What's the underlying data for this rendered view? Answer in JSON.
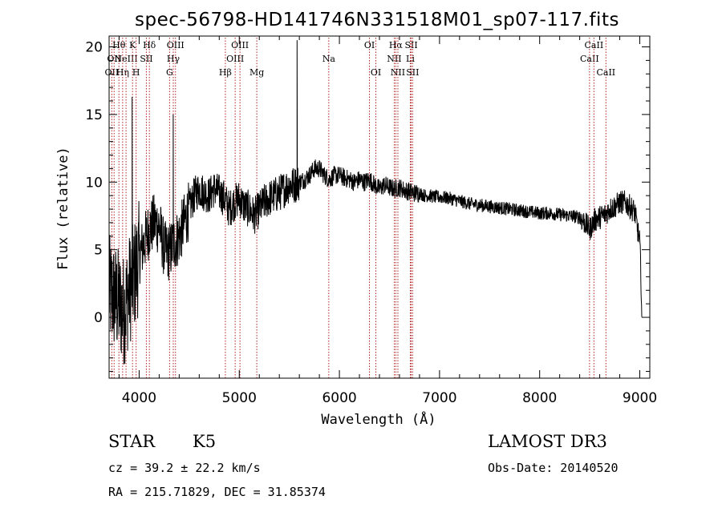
{
  "chart_data": {
    "type": "line",
    "title": "spec-56798-HD141746N331518M01_sp07-117.fits",
    "xlabel": "Wavelength (Å)",
    "ylabel": "Flux (relative)",
    "xlim": [
      3700,
      9100
    ],
    "ylim": [
      -4.5,
      20.8
    ],
    "xticks": [
      4000,
      5000,
      6000,
      7000,
      8000,
      9000
    ],
    "yticks": [
      0,
      5,
      10,
      15,
      20
    ],
    "series": [
      {
        "name": "flux",
        "x": [
          3700,
          3750,
          3800,
          3850,
          3900,
          3950,
          4000,
          4050,
          4100,
          4150,
          4200,
          4250,
          4300,
          4350,
          4400,
          4450,
          4500,
          4550,
          4600,
          4650,
          4700,
          4750,
          4800,
          4850,
          4900,
          4950,
          5000,
          5050,
          5100,
          5150,
          5200,
          5250,
          5300,
          5350,
          5400,
          5450,
          5500,
          5550,
          5600,
          5650,
          5700,
          5750,
          5800,
          5850,
          5900,
          5950,
          6000,
          6050,
          6100,
          6150,
          6200,
          6250,
          6300,
          6350,
          6400,
          6450,
          6500,
          6550,
          6600,
          6650,
          6700,
          6750,
          6800,
          6850,
          6900,
          6950,
          7000,
          7100,
          7200,
          7300,
          7400,
          7500,
          7600,
          7700,
          7800,
          7900,
          8000,
          8100,
          8200,
          8300,
          8400,
          8450,
          8500,
          8550,
          8600,
          8650,
          8700,
          8750,
          8800,
          8850,
          8900,
          8950,
          9000,
          9010,
          9020
        ],
        "values": [
          2.0,
          1.5,
          1.0,
          0.5,
          2.0,
          3.0,
          4.5,
          5.5,
          6.5,
          7.0,
          6.8,
          5.0,
          4.8,
          5.5,
          6.0,
          7.0,
          8.0,
          9.0,
          9.5,
          9.2,
          9.0,
          9.5,
          9.2,
          8.8,
          8.0,
          8.5,
          8.8,
          8.2,
          8.0,
          7.5,
          8.0,
          8.5,
          8.8,
          9.0,
          9.2,
          9.5,
          9.8,
          9.8,
          10.0,
          10.2,
          10.5,
          11.0,
          11.0,
          10.5,
          10.2,
          10.5,
          10.5,
          10.3,
          10.2,
          10.0,
          10.2,
          10.0,
          10.2,
          9.8,
          9.5,
          9.8,
          9.6,
          9.5,
          9.6,
          9.4,
          9.3,
          9.2,
          9.2,
          9.0,
          9.0,
          8.9,
          8.9,
          8.8,
          8.6,
          8.4,
          8.3,
          8.2,
          8.1,
          8.0,
          7.9,
          7.8,
          7.7,
          7.7,
          7.6,
          7.5,
          7.4,
          7.0,
          6.5,
          7.2,
          7.4,
          7.6,
          8.0,
          8.2,
          8.5,
          8.5,
          8.2,
          7.8,
          5.5,
          3.5,
          0.0
        ]
      }
    ],
    "spikes": [
      {
        "x": 5577,
        "value": 20.5
      },
      {
        "x": 4340,
        "value": 15.0
      },
      {
        "x": 3930,
        "value": 16.3
      }
    ],
    "line_markers": [
      {
        "x": 3727,
        "row": 2,
        "label": "OII"
      },
      {
        "x": 3750,
        "row": 1,
        "label": "OII"
      },
      {
        "x": 3798,
        "row": 0,
        "label": "Hθ"
      },
      {
        "x": 3835,
        "row": 2,
        "label": "Hη"
      },
      {
        "x": 3869,
        "row": 1,
        "label": "NeIII"
      },
      {
        "x": 3934,
        "row": 0,
        "label": "K"
      },
      {
        "x": 3970,
        "row": 2,
        "label": "H"
      },
      {
        "x": 4072,
        "row": 1,
        "label": "SII"
      },
      {
        "x": 4102,
        "row": 0,
        "label": "Hδ"
      },
      {
        "x": 4304,
        "row": 2,
        "label": "G"
      },
      {
        "x": 4341,
        "row": 1,
        "label": "Hγ"
      },
      {
        "x": 4363,
        "row": 0,
        "label": "OIII"
      },
      {
        "x": 4861,
        "row": 2,
        "label": "Hβ"
      },
      {
        "x": 4959,
        "row": 1,
        "label": "OIII"
      },
      {
        "x": 5007,
        "row": 0,
        "label": "OIII"
      },
      {
        "x": 5175,
        "row": 2,
        "label": "Mg"
      },
      {
        "x": 5894,
        "row": 1,
        "label": "Na"
      },
      {
        "x": 6300,
        "row": 0,
        "label": "OI"
      },
      {
        "x": 6364,
        "row": 2,
        "label": "OI"
      },
      {
        "x": 6548,
        "row": 1,
        "label": "NII"
      },
      {
        "x": 6563,
        "row": 0,
        "label": "Hα"
      },
      {
        "x": 6584,
        "row": 2,
        "label": "NII"
      },
      {
        "x": 6708,
        "row": 1,
        "label": "Li"
      },
      {
        "x": 6717,
        "row": 0,
        "label": "SII"
      },
      {
        "x": 6731,
        "row": 2,
        "label": "SII"
      },
      {
        "x": 8498,
        "row": 1,
        "label": "CaII"
      },
      {
        "x": 8542,
        "row": 0,
        "label": "CaII"
      },
      {
        "x": 8662,
        "row": 2,
        "label": "CaII"
      }
    ]
  },
  "info": {
    "object_class": "STAR",
    "subclass": "K5",
    "survey": "LAMOST DR3",
    "redshift": "cz = 39.2 ± 22.2 km/s",
    "obs_date": "Obs-Date: 20140520",
    "coords": "RA = 215.71829, DEC =  31.85374"
  }
}
